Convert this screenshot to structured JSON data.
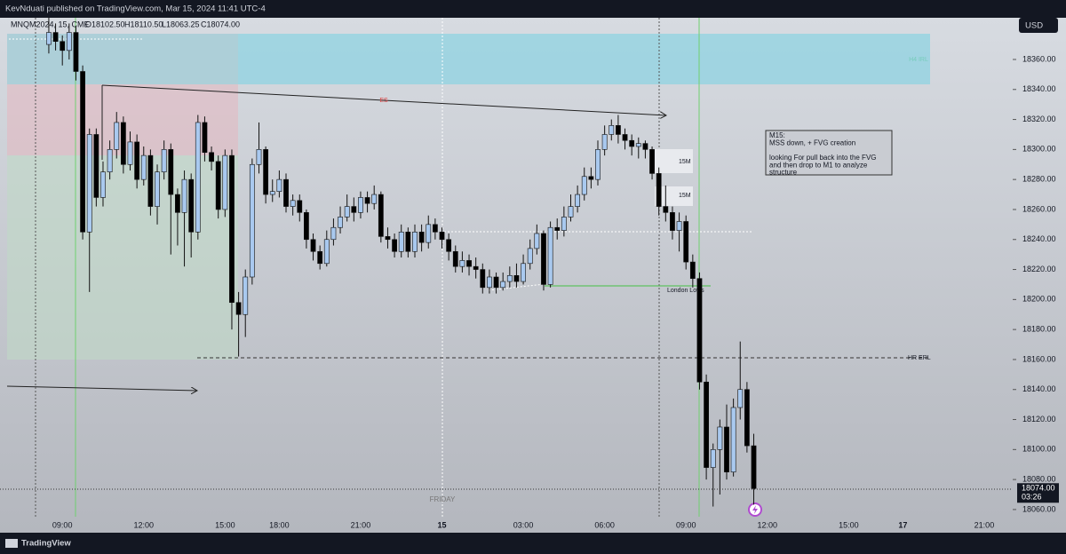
{
  "header": {
    "published": "KevNduati published on TradingView.com, Mar 15, 2024 11:41 UTC-4",
    "symbol": "MNQM2024, 15, CME",
    "open": "O18102.50",
    "high": "H18110.50",
    "low": "L18063.25",
    "close": "C18074.00",
    "currency": "USD"
  },
  "chart_data": {
    "type": "candlestick",
    "x": [
      -2,
      -1,
      0,
      1,
      2,
      3,
      4,
      5,
      6,
      7,
      8,
      9,
      10,
      11,
      12,
      13,
      14,
      15,
      16,
      17,
      18,
      19,
      20,
      21,
      22,
      23,
      24,
      25,
      26,
      27,
      28,
      29,
      30,
      31,
      32,
      33,
      34,
      35,
      36,
      37,
      38,
      39,
      40,
      41,
      42,
      43,
      44,
      45,
      46,
      47,
      48,
      49,
      50,
      51,
      52,
      53,
      54,
      55,
      56,
      57,
      58,
      59,
      60,
      61,
      62,
      63,
      64,
      65,
      66,
      67,
      68,
      69,
      70,
      71,
      72,
      73,
      74,
      75,
      76,
      77,
      78,
      79,
      80,
      81,
      82,
      83,
      84,
      85,
      86,
      87,
      88,
      89,
      90,
      91,
      92,
      93,
      94,
      95,
      96,
      97,
      98,
      99,
      100,
      101,
      102
    ],
    "open": [
      18370,
      18378,
      18372,
      18366,
      18378,
      18352,
      18245,
      18310,
      18268,
      18285,
      18300,
      18318,
      18290,
      18305,
      18280,
      18296,
      18262,
      18285,
      18300,
      18270,
      18258,
      18280,
      18245,
      18318,
      18298,
      18292,
      18260,
      18296,
      18198,
      18190,
      18215,
      18290,
      18300,
      18270,
      18272,
      18280,
      18262,
      18266,
      18258,
      18240,
      18232,
      18224,
      18240,
      18248,
      18255,
      18262,
      18258,
      18268,
      18264,
      18270,
      18242,
      18240,
      18232,
      18245,
      18232,
      18245,
      18238,
      18250,
      18245,
      18240,
      18232,
      18222,
      18226,
      18222,
      18220,
      18208,
      18215,
      18208,
      18212,
      18216,
      18212,
      18224,
      18234,
      18244,
      18210,
      18248,
      18246,
      18255,
      18262,
      18270,
      18282,
      18280,
      18300,
      18310,
      18316,
      18310,
      18306,
      18302,
      18304,
      18300,
      18284,
      18262,
      18258,
      18246,
      18252,
      18225,
      18214,
      18145,
      18088,
      18100,
      18115,
      18085,
      18128,
      18140,
      18102.5
    ],
    "high": [
      18388,
      18384,
      18376,
      18384,
      18382,
      18356,
      18314,
      18314,
      18292,
      18306,
      18325,
      18322,
      18312,
      18310,
      18302,
      18300,
      18290,
      18306,
      18304,
      18274,
      18286,
      18284,
      18323,
      18322,
      18302,
      18296,
      18300,
      18300,
      18205,
      18220,
      18294,
      18318,
      18302,
      18280,
      18286,
      18284,
      18270,
      18270,
      18260,
      18244,
      18236,
      18246,
      18254,
      18262,
      18270,
      18268,
      18272,
      18272,
      18276,
      18272,
      18248,
      18244,
      18250,
      18248,
      18250,
      18250,
      18256,
      18254,
      18248,
      18244,
      18236,
      18232,
      18230,
      18228,
      18224,
      18220,
      18218,
      18218,
      18222,
      18224,
      18230,
      18240,
      18250,
      18246,
      18252,
      18254,
      18262,
      18270,
      18276,
      18288,
      18288,
      18306,
      18316,
      18320,
      18323,
      18314,
      18310,
      18308,
      18306,
      18302,
      18288,
      18276,
      18262,
      18258,
      18256,
      18230,
      18218,
      18150,
      18104,
      18120,
      18130,
      18134,
      18172,
      18145,
      18110.5
    ],
    "low": [
      18364,
      18366,
      18356,
      18360,
      18346,
      18240,
      18205,
      18262,
      18262,
      18280,
      18294,
      18284,
      18286,
      18274,
      18276,
      18256,
      18250,
      18280,
      18230,
      18236,
      18222,
      18228,
      18240,
      18292,
      18286,
      18254,
      18255,
      18180,
      18162,
      18175,
      18210,
      18284,
      18264,
      18265,
      18268,
      18258,
      18256,
      18252,
      18234,
      18226,
      18220,
      18222,
      18236,
      18244,
      18252,
      18252,
      18254,
      18258,
      18260,
      18238,
      18234,
      18228,
      18228,
      18228,
      18228,
      18232,
      18234,
      18240,
      18234,
      18226,
      18218,
      18218,
      18216,
      18214,
      18204,
      18204,
      18204,
      18206,
      18208,
      18208,
      18210,
      18220,
      18230,
      18206,
      18208,
      18240,
      18242,
      18252,
      18258,
      18266,
      18274,
      18276,
      18296,
      18306,
      18304,
      18300,
      18296,
      18294,
      18294,
      18280,
      18256,
      18252,
      18240,
      18232,
      18220,
      18208,
      18140,
      18080,
      18062,
      18070,
      18080,
      18082,
      18120,
      18098,
      18063.25
    ],
    "close": [
      18378,
      18372,
      18366,
      18378,
      18352,
      18245,
      18310,
      18268,
      18285,
      18300,
      18318,
      18290,
      18305,
      18280,
      18296,
      18262,
      18285,
      18300,
      18270,
      18258,
      18280,
      18245,
      18318,
      18298,
      18292,
      18260,
      18296,
      18198,
      18190,
      18215,
      18290,
      18300,
      18270,
      18272,
      18280,
      18262,
      18266,
      18258,
      18240,
      18232,
      18224,
      18240,
      18248,
      18255,
      18262,
      18258,
      18268,
      18264,
      18270,
      18242,
      18240,
      18232,
      18245,
      18232,
      18245,
      18238,
      18250,
      18245,
      18240,
      18232,
      18222,
      18226,
      18222,
      18220,
      18208,
      18215,
      18208,
      18212,
      18216,
      18212,
      18224,
      18234,
      18244,
      18210,
      18248,
      18246,
      18255,
      18262,
      18270,
      18282,
      18280,
      18300,
      18310,
      18316,
      18310,
      18306,
      18302,
      18304,
      18300,
      18284,
      18262,
      18258,
      18246,
      18252,
      18225,
      18214,
      18145,
      18088,
      18100,
      18115,
      18085,
      18128,
      18140,
      18102.5,
      18074
    ],
    "up_color": "#a9c9ef",
    "down_color": "#000000",
    "xlim": [
      -9.2,
      140.2
    ],
    "xticks": [
      {
        "value": 0,
        "label": "09:00"
      },
      {
        "value": 12,
        "label": "12:00"
      },
      {
        "value": 24,
        "label": "15:00"
      },
      {
        "value": 32,
        "label": "18:00"
      },
      {
        "value": 44,
        "label": "21:00"
      },
      {
        "value": 56,
        "label": "15"
      },
      {
        "value": 68,
        "label": "03:00"
      },
      {
        "value": 80,
        "label": "06:00"
      },
      {
        "value": 92,
        "label": "09:00"
      },
      {
        "value": 104,
        "label": "12:00"
      },
      {
        "value": 116,
        "label": "15:00"
      },
      {
        "value": 124,
        "label": "17"
      },
      {
        "value": 136,
        "label": "21:00"
      }
    ],
    "ylim": [
      18056.4,
      18387.8
    ],
    "yticks": [
      {
        "value": 18060,
        "label": "18060.00"
      },
      {
        "value": 18080,
        "label": "18080.00"
      },
      {
        "value": 18100,
        "label": "18100.00"
      },
      {
        "value": 18120,
        "label": "18120.00"
      },
      {
        "value": 18140,
        "label": "18140.00"
      },
      {
        "value": 18160,
        "label": "18160.00"
      },
      {
        "value": 18180,
        "label": "18180.00"
      },
      {
        "value": 18200,
        "label": "18200.00"
      },
      {
        "value": 18220,
        "label": "18220.00"
      },
      {
        "value": 18240,
        "label": "18240.00"
      },
      {
        "value": 18260,
        "label": "18260.00"
      },
      {
        "value": 18280,
        "label": "18280.00"
      },
      {
        "value": 18300,
        "label": "18300.00"
      },
      {
        "value": 18320,
        "label": "18320.00"
      },
      {
        "value": 18340,
        "label": "18340.00"
      },
      {
        "value": 18360,
        "label": "18360.00"
      }
    ],
    "last_price_label": "18074.00",
    "countdown": "03:26",
    "annotations": {
      "zone": "H4 IRL",
      "trendline": "ES",
      "fvg1": "15M",
      "fvg2": "15M",
      "london": "London Lows",
      "erl": "HR ERL",
      "day": "FRIDAY",
      "note": [
        "M15:",
        "MSS down, + FVG creation",
        "",
        "looking For pull back into the FVG",
        "and then drop to M1 to analyze",
        "structure"
      ]
    }
  },
  "footer": {
    "brand": "TradingView"
  }
}
